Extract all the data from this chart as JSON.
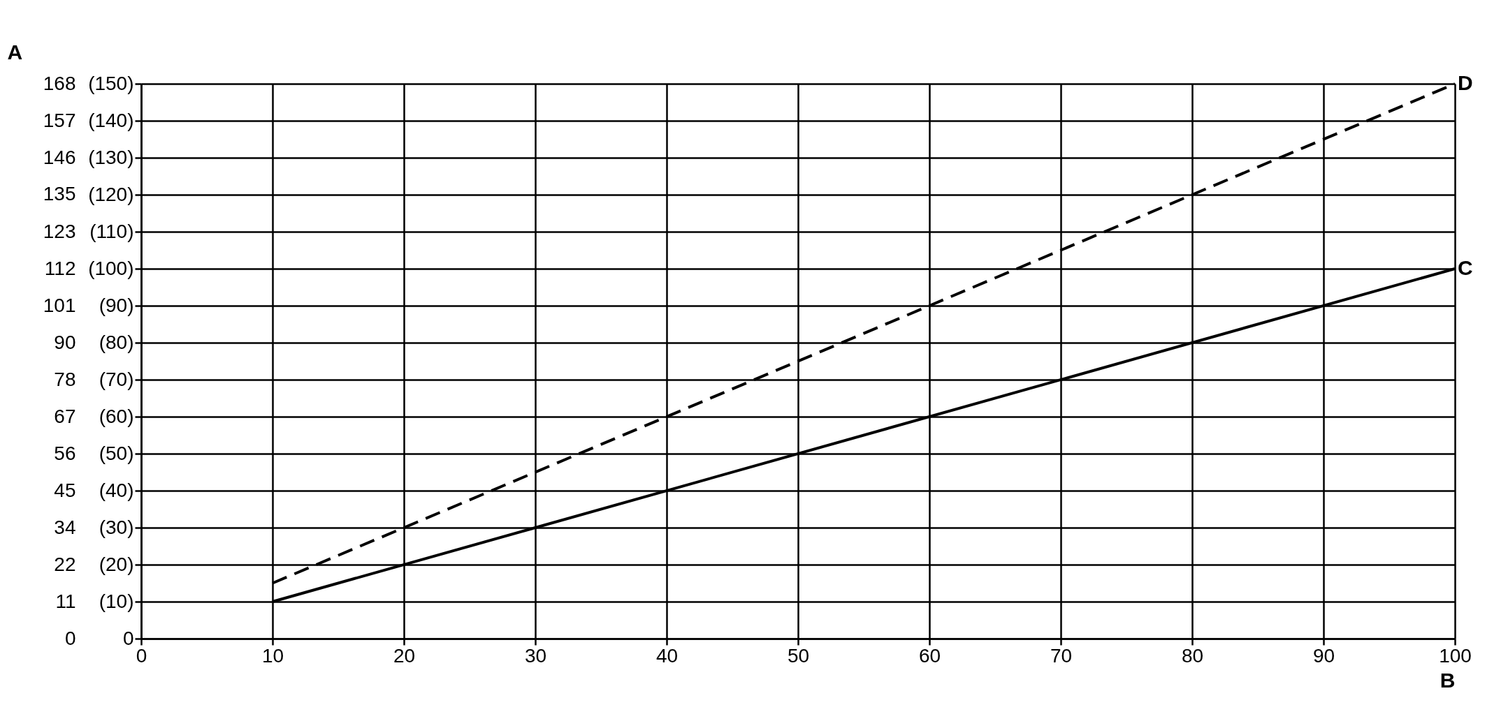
{
  "chart_data": {
    "type": "line",
    "xlabel": "B",
    "y2label": "A",
    "x": [
      10,
      100
    ],
    "series": [
      {
        "name": "C",
        "color": "#000000",
        "values": [
          10,
          100
        ],
        "line_style": "solid"
      },
      {
        "name": "D",
        "color": "#000000",
        "values": [
          15,
          150
        ],
        "line_style": "dashed"
      }
    ],
    "xlim": [
      0,
      100
    ],
    "xticks": [
      0,
      10,
      20,
      30,
      40,
      50,
      60,
      70,
      80,
      90,
      100
    ],
    "ylim": [
      0,
      150
    ],
    "yticks": [
      0,
      {
        "value": 10,
        "label": "(10)"
      },
      {
        "value": 20,
        "label": "(20)"
      },
      {
        "value": 30,
        "label": "(30)"
      },
      {
        "value": 40,
        "label": "(40)"
      },
      {
        "value": 50,
        "label": "(50)"
      },
      {
        "value": 60,
        "label": "(60)"
      },
      {
        "value": 70,
        "label": "(70)"
      },
      {
        "value": 80,
        "label": "(80)"
      },
      {
        "value": 90,
        "label": "(90)"
      },
      {
        "value": 100,
        "label": "(100)"
      },
      {
        "value": 110,
        "label": "(110)"
      },
      {
        "value": 120,
        "label": "(120)"
      },
      {
        "value": 130,
        "label": "(130)"
      },
      {
        "value": 140,
        "label": "(140)"
      },
      {
        "value": 150,
        "label": "(150)"
      }
    ],
    "y2lim": [
      0,
      168
    ],
    "y2ticks": [
      0,
      {
        "value": 11.2,
        "label": "11"
      },
      {
        "value": 22.4,
        "label": "22"
      },
      {
        "value": 33.6,
        "label": "34"
      },
      {
        "value": 44.8,
        "label": "45"
      },
      56,
      {
        "value": 67.2,
        "label": "67"
      },
      {
        "value": 78.4,
        "label": "78"
      },
      {
        "value": 89.6,
        "label": "90"
      },
      {
        "value": 100.8,
        "label": "101"
      },
      112,
      {
        "value": 123.2,
        "label": "123"
      },
      {
        "value": 134.6,
        "label": "135"
      },
      {
        "value": 145.6,
        "label": "146"
      },
      {
        "value": 156.8,
        "label": "157"
      },
      168
    ],
    "grid": true,
    "legend": false,
    "marker": "none"
  }
}
